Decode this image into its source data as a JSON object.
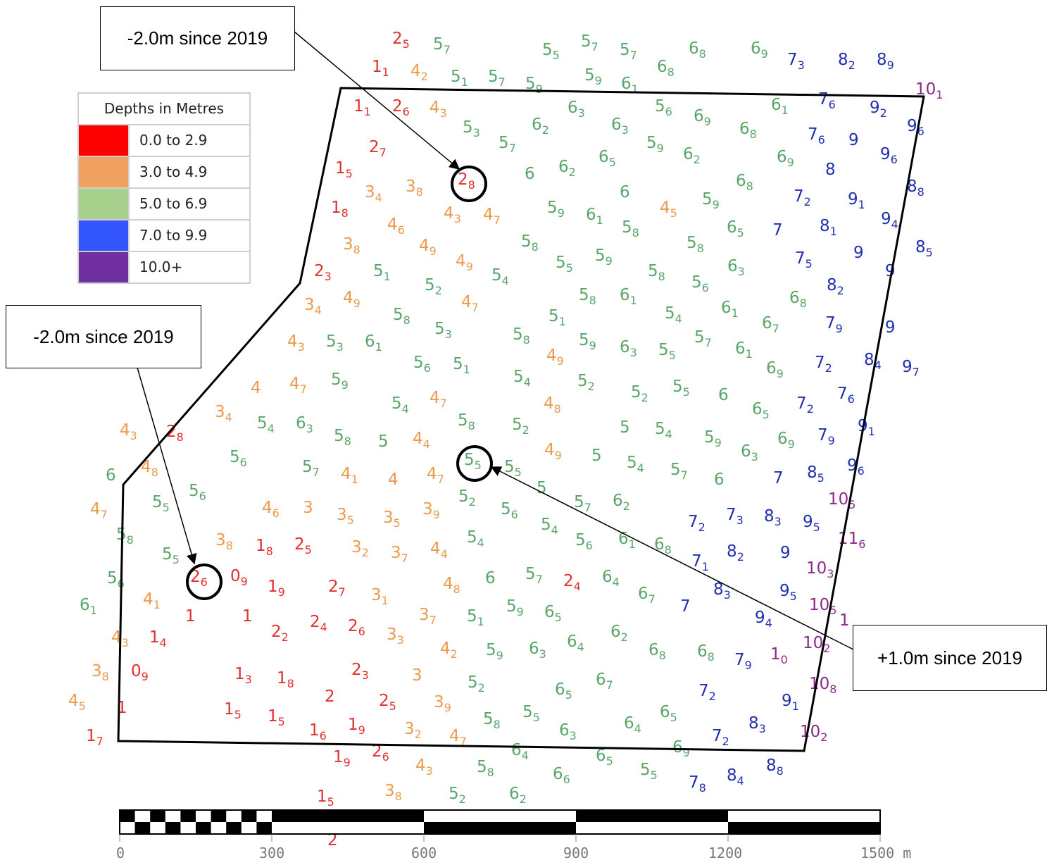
{
  "legend": {
    "title": "Depths in Metres",
    "items": [
      {
        "label": "0.0 to 2.9",
        "color": "#ff0000"
      },
      {
        "label": "3.0 to 4.9",
        "color": "#f0a060"
      },
      {
        "label": "5.0 to 6.9",
        "color": "#a8d08d"
      },
      {
        "label": "7.0 to 9.9",
        "color": "#3355ff"
      },
      {
        "label": "10.0+",
        "color": "#7030a0"
      }
    ]
  },
  "callouts": [
    {
      "text": "-2.0m since 2019"
    },
    {
      "text": "-2.0m since 2019"
    },
    {
      "text": "+1.0m since 2019"
    }
  ],
  "scale_bar": {
    "labels": [
      "0",
      "300",
      "600",
      "900",
      "1200",
      "1500 m"
    ]
  },
  "depth_colors": {
    "red": "#e03030",
    "orange": "#ec9a4e",
    "green": "#5aa56a",
    "blue": "#2030b0",
    "purple": "#8a2a8a"
  },
  "soundings": [
    {
      "v": "25",
      "c": "red"
    },
    {
      "v": "57",
      "c": "green"
    },
    {
      "v": "55",
      "c": "green"
    },
    {
      "v": "57",
      "c": "green"
    },
    {
      "v": "57",
      "c": "green"
    },
    {
      "v": "68",
      "c": "green"
    },
    {
      "v": "69",
      "c": "green"
    },
    {
      "v": "73",
      "c": "blue"
    },
    {
      "v": "82",
      "c": "blue"
    },
    {
      "v": "89",
      "c": "blue"
    },
    {
      "v": "11",
      "c": "red"
    },
    {
      "v": "42",
      "c": "orange"
    },
    {
      "v": "51",
      "c": "green"
    },
    {
      "v": "57",
      "c": "green"
    },
    {
      "v": "59",
      "c": "green"
    },
    {
      "v": "59",
      "c": "green"
    },
    {
      "v": "61",
      "c": "green"
    },
    {
      "v": "68",
      "c": "green"
    },
    {
      "v": "101",
      "c": "purple"
    },
    {
      "v": "11",
      "c": "red"
    },
    {
      "v": "26",
      "c": "red"
    },
    {
      "v": "43",
      "c": "orange"
    },
    {
      "v": "63",
      "c": "green"
    },
    {
      "v": "56",
      "c": "green"
    },
    {
      "v": "69",
      "c": "green"
    },
    {
      "v": "61",
      "c": "green"
    },
    {
      "v": "76",
      "c": "blue"
    },
    {
      "v": "92",
      "c": "blue"
    },
    {
      "v": "96",
      "c": "blue"
    },
    {
      "v": "53",
      "c": "green"
    },
    {
      "v": "62",
      "c": "green"
    },
    {
      "v": "63",
      "c": "green"
    },
    {
      "v": "68",
      "c": "green"
    },
    {
      "v": "76",
      "c": "blue"
    },
    {
      "v": "9",
      "c": "blue"
    },
    {
      "v": "96",
      "c": "blue"
    },
    {
      "v": "27",
      "c": "red"
    },
    {
      "v": "57",
      "c": "green"
    },
    {
      "v": "59",
      "c": "green"
    },
    {
      "v": "62",
      "c": "green"
    },
    {
      "v": "65",
      "c": "green"
    },
    {
      "v": "69",
      "c": "green"
    },
    {
      "v": "8",
      "c": "blue"
    },
    {
      "v": "15",
      "c": "red"
    },
    {
      "v": "28",
      "c": "red"
    },
    {
      "v": "6",
      "c": "green"
    },
    {
      "v": "62",
      "c": "green"
    },
    {
      "v": "68",
      "c": "green"
    },
    {
      "v": "88",
      "c": "blue"
    },
    {
      "v": "34",
      "c": "orange"
    },
    {
      "v": "38",
      "c": "orange"
    },
    {
      "v": "6",
      "c": "green"
    },
    {
      "v": "59",
      "c": "green"
    },
    {
      "v": "72",
      "c": "blue"
    },
    {
      "v": "91",
      "c": "blue"
    },
    {
      "v": "18",
      "c": "red"
    },
    {
      "v": "43",
      "c": "orange"
    },
    {
      "v": "47",
      "c": "orange"
    },
    {
      "v": "59",
      "c": "green"
    },
    {
      "v": "61",
      "c": "green"
    },
    {
      "v": "45",
      "c": "orange"
    },
    {
      "v": "94",
      "c": "blue"
    },
    {
      "v": "46",
      "c": "orange"
    },
    {
      "v": "58",
      "c": "green"
    },
    {
      "v": "65",
      "c": "green"
    },
    {
      "v": "7",
      "c": "blue"
    },
    {
      "v": "81",
      "c": "blue"
    },
    {
      "v": "38",
      "c": "orange"
    },
    {
      "v": "49",
      "c": "orange"
    },
    {
      "v": "58",
      "c": "green"
    },
    {
      "v": "58",
      "c": "green"
    },
    {
      "v": "85",
      "c": "blue"
    },
    {
      "v": "49",
      "c": "orange"
    },
    {
      "v": "55",
      "c": "green"
    },
    {
      "v": "59",
      "c": "green"
    },
    {
      "v": "63",
      "c": "green"
    },
    {
      "v": "75",
      "c": "blue"
    },
    {
      "v": "9",
      "c": "blue"
    },
    {
      "v": "23",
      "c": "red"
    },
    {
      "v": "51",
      "c": "green"
    },
    {
      "v": "54",
      "c": "green"
    },
    {
      "v": "58",
      "c": "green"
    },
    {
      "v": "9",
      "c": "blue"
    },
    {
      "v": "52",
      "c": "green"
    },
    {
      "v": "56",
      "c": "green"
    },
    {
      "v": "82",
      "c": "blue"
    },
    {
      "v": "49",
      "c": "orange"
    },
    {
      "v": "47",
      "c": "orange"
    },
    {
      "v": "58",
      "c": "green"
    },
    {
      "v": "61",
      "c": "green"
    },
    {
      "v": "68",
      "c": "green"
    },
    {
      "v": "34",
      "c": "orange"
    },
    {
      "v": "58",
      "c": "green"
    },
    {
      "v": "51",
      "c": "green"
    },
    {
      "v": "54",
      "c": "green"
    },
    {
      "v": "61",
      "c": "green"
    },
    {
      "v": "67",
      "c": "green"
    },
    {
      "v": "79",
      "c": "blue"
    },
    {
      "v": "9",
      "c": "blue"
    },
    {
      "v": "53",
      "c": "green"
    },
    {
      "v": "58",
      "c": "green"
    },
    {
      "v": "57",
      "c": "green"
    },
    {
      "v": "43",
      "c": "orange"
    },
    {
      "v": "53",
      "c": "green"
    },
    {
      "v": "61",
      "c": "green"
    },
    {
      "v": "59",
      "c": "green"
    },
    {
      "v": "63",
      "c": "green"
    },
    {
      "v": "55",
      "c": "green"
    },
    {
      "v": "61",
      "c": "green"
    },
    {
      "v": "56",
      "c": "green"
    },
    {
      "v": "51",
      "c": "green"
    },
    {
      "v": "49",
      "c": "orange"
    },
    {
      "v": "69",
      "c": "green"
    },
    {
      "v": "72",
      "c": "blue"
    },
    {
      "v": "84",
      "c": "blue"
    },
    {
      "v": "97",
      "c": "blue"
    },
    {
      "v": "59",
      "c": "green"
    },
    {
      "v": "54",
      "c": "green"
    },
    {
      "v": "52",
      "c": "green"
    },
    {
      "v": "4",
      "c": "orange"
    },
    {
      "v": "47",
      "c": "orange"
    },
    {
      "v": "52",
      "c": "green"
    },
    {
      "v": "55",
      "c": "green"
    },
    {
      "v": "6",
      "c": "green"
    },
    {
      "v": "76",
      "c": "blue"
    },
    {
      "v": "54",
      "c": "green"
    },
    {
      "v": "47",
      "c": "orange"
    },
    {
      "v": "48",
      "c": "orange"
    },
    {
      "v": "65",
      "c": "green"
    },
    {
      "v": "72",
      "c": "blue"
    },
    {
      "v": "34",
      "c": "orange"
    },
    {
      "v": "43",
      "c": "orange"
    },
    {
      "v": "28",
      "c": "red"
    },
    {
      "v": "54",
      "c": "green"
    },
    {
      "v": "63",
      "c": "green"
    },
    {
      "v": "58",
      "c": "green"
    },
    {
      "v": "52",
      "c": "green"
    },
    {
      "v": "5",
      "c": "green"
    },
    {
      "v": "54",
      "c": "green"
    },
    {
      "v": "91",
      "c": "blue"
    },
    {
      "v": "58",
      "c": "green"
    },
    {
      "v": "5",
      "c": "green"
    },
    {
      "v": "44",
      "c": "orange"
    },
    {
      "v": "59",
      "c": "green"
    },
    {
      "v": "69",
      "c": "green"
    },
    {
      "v": "79",
      "c": "blue"
    },
    {
      "v": "56",
      "c": "green"
    },
    {
      "v": "49",
      "c": "orange"
    },
    {
      "v": "5",
      "c": "green"
    },
    {
      "v": "63",
      "c": "green"
    },
    {
      "v": "6",
      "c": "green"
    },
    {
      "v": "48",
      "c": "orange"
    },
    {
      "v": "57",
      "c": "green"
    },
    {
      "v": "41",
      "c": "orange"
    },
    {
      "v": "4",
      "c": "orange"
    },
    {
      "v": "47",
      "c": "orange"
    },
    {
      "v": "55",
      "c": "green"
    },
    {
      "v": "55",
      "c": "green"
    },
    {
      "v": "54",
      "c": "green"
    },
    {
      "v": "57",
      "c": "green"
    },
    {
      "v": "6",
      "c": "green"
    },
    {
      "v": "7",
      "c": "blue"
    },
    {
      "v": "85",
      "c": "blue"
    },
    {
      "v": "96",
      "c": "blue"
    },
    {
      "v": "56",
      "c": "green"
    },
    {
      "v": "55",
      "c": "green"
    },
    {
      "v": "5",
      "c": "green"
    },
    {
      "v": "52",
      "c": "green"
    },
    {
      "v": "57",
      "c": "green"
    },
    {
      "v": "62",
      "c": "green"
    },
    {
      "v": "105",
      "c": "purple"
    },
    {
      "v": "47",
      "c": "orange"
    },
    {
      "v": "46",
      "c": "orange"
    },
    {
      "v": "3",
      "c": "orange"
    },
    {
      "v": "35",
      "c": "orange"
    },
    {
      "v": "35",
      "c": "orange"
    },
    {
      "v": "39",
      "c": "orange"
    },
    {
      "v": "56",
      "c": "green"
    },
    {
      "v": "72",
      "c": "blue"
    },
    {
      "v": "73",
      "c": "blue"
    },
    {
      "v": "83",
      "c": "blue"
    },
    {
      "v": "95",
      "c": "blue"
    },
    {
      "v": "58",
      "c": "green"
    },
    {
      "v": "38",
      "c": "orange"
    },
    {
      "v": "18",
      "c": "red"
    },
    {
      "v": "25",
      "c": "red"
    },
    {
      "v": "32",
      "c": "orange"
    },
    {
      "v": "37",
      "c": "orange"
    },
    {
      "v": "44",
      "c": "orange"
    },
    {
      "v": "54",
      "c": "green"
    },
    {
      "v": "54",
      "c": "green"
    },
    {
      "v": "56",
      "c": "green"
    },
    {
      "v": "61",
      "c": "green"
    },
    {
      "v": "68",
      "c": "green"
    },
    {
      "v": "116",
      "c": "purple"
    },
    {
      "v": "55",
      "c": "green"
    },
    {
      "v": "26",
      "c": "red"
    },
    {
      "v": "09",
      "c": "red"
    },
    {
      "v": "71",
      "c": "blue"
    },
    {
      "v": "82",
      "c": "blue"
    },
    {
      "v": "9",
      "c": "blue"
    },
    {
      "v": "56",
      "c": "green"
    },
    {
      "v": "19",
      "c": "red"
    },
    {
      "v": "27",
      "c": "red"
    },
    {
      "v": "31",
      "c": "orange"
    },
    {
      "v": "48",
      "c": "orange"
    },
    {
      "v": "6",
      "c": "green"
    },
    {
      "v": "57",
      "c": "green"
    },
    {
      "v": "24",
      "c": "red"
    },
    {
      "v": "64",
      "c": "green"
    },
    {
      "v": "83",
      "c": "blue"
    },
    {
      "v": "103",
      "c": "purple"
    },
    {
      "v": "61",
      "c": "green"
    },
    {
      "v": "41",
      "c": "orange"
    },
    {
      "v": "1",
      "c": "red"
    },
    {
      "v": "1",
      "c": "red"
    },
    {
      "v": "67",
      "c": "green"
    },
    {
      "v": "7",
      "c": "blue"
    },
    {
      "v": "95",
      "c": "blue"
    },
    {
      "v": "105",
      "c": "purple"
    },
    {
      "v": "37",
      "c": "orange"
    },
    {
      "v": "51",
      "c": "green"
    },
    {
      "v": "59",
      "c": "green"
    },
    {
      "v": "65",
      "c": "green"
    },
    {
      "v": "94",
      "c": "blue"
    },
    {
      "v": "1",
      "c": "purple"
    },
    {
      "v": "43",
      "c": "orange"
    },
    {
      "v": "14",
      "c": "red"
    },
    {
      "v": "22",
      "c": "red"
    },
    {
      "v": "24",
      "c": "red"
    },
    {
      "v": "26",
      "c": "red"
    },
    {
      "v": "33",
      "c": "orange"
    },
    {
      "v": "62",
      "c": "green"
    },
    {
      "v": "42",
      "c": "orange"
    },
    {
      "v": "59",
      "c": "green"
    },
    {
      "v": "63",
      "c": "green"
    },
    {
      "v": "64",
      "c": "green"
    },
    {
      "v": "68",
      "c": "green"
    },
    {
      "v": "68",
      "c": "green"
    },
    {
      "v": "79",
      "c": "blue"
    },
    {
      "v": "10",
      "c": "purple"
    },
    {
      "v": "102",
      "c": "purple"
    },
    {
      "v": "38",
      "c": "orange"
    },
    {
      "v": "09",
      "c": "red"
    },
    {
      "v": "13",
      "c": "red"
    },
    {
      "v": "18",
      "c": "red"
    },
    {
      "v": "23",
      "c": "red"
    },
    {
      "v": "3",
      "c": "orange"
    },
    {
      "v": "52",
      "c": "green"
    },
    {
      "v": "67",
      "c": "green"
    },
    {
      "v": "108",
      "c": "purple"
    },
    {
      "v": "45",
      "c": "orange"
    },
    {
      "v": "1",
      "c": "red"
    },
    {
      "v": "2",
      "c": "red"
    },
    {
      "v": "25",
      "c": "red"
    },
    {
      "v": "39",
      "c": "orange"
    },
    {
      "v": "65",
      "c": "green"
    },
    {
      "v": "72",
      "c": "blue"
    },
    {
      "v": "91",
      "c": "blue"
    },
    {
      "v": "15",
      "c": "red"
    },
    {
      "v": "15",
      "c": "red"
    },
    {
      "v": "19",
      "c": "red"
    },
    {
      "v": "58",
      "c": "green"
    },
    {
      "v": "55",
      "c": "green"
    },
    {
      "v": "65",
      "c": "green"
    },
    {
      "v": "83",
      "c": "blue"
    },
    {
      "v": "17",
      "c": "red"
    },
    {
      "v": "16",
      "c": "red"
    },
    {
      "v": "32",
      "c": "orange"
    },
    {
      "v": "47",
      "c": "orange"
    },
    {
      "v": "63",
      "c": "green"
    },
    {
      "v": "64",
      "c": "green"
    },
    {
      "v": "69",
      "c": "green"
    },
    {
      "v": "72",
      "c": "blue"
    },
    {
      "v": "102",
      "c": "purple"
    },
    {
      "v": "19",
      "c": "red"
    },
    {
      "v": "26",
      "c": "red"
    },
    {
      "v": "43",
      "c": "orange"
    },
    {
      "v": "64",
      "c": "green"
    },
    {
      "v": "58",
      "c": "green"
    },
    {
      "v": "66",
      "c": "green"
    },
    {
      "v": "65",
      "c": "green"
    },
    {
      "v": "55",
      "c": "green"
    },
    {
      "v": "78",
      "c": "blue"
    },
    {
      "v": "84",
      "c": "blue"
    },
    {
      "v": "88",
      "c": "blue"
    },
    {
      "v": "15",
      "c": "red"
    },
    {
      "v": "38",
      "c": "orange"
    },
    {
      "v": "52",
      "c": "green"
    },
    {
      "v": "62",
      "c": "green"
    },
    {
      "v": "2",
      "c": "red"
    }
  ]
}
